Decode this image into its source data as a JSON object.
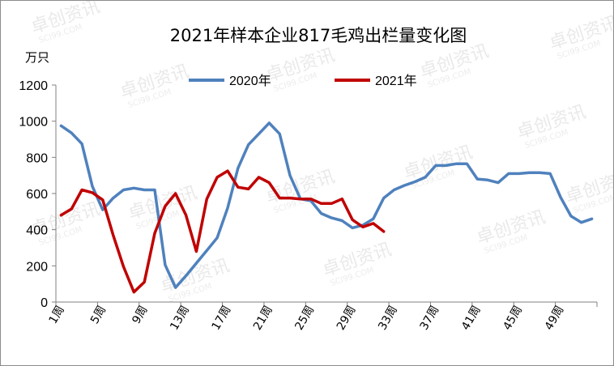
{
  "chart_data": {
    "type": "line",
    "title": "2021年样本企业817毛鸡出栏量变化图",
    "ylabel": "万只",
    "xlabel": "",
    "ylim": [
      0,
      1200
    ],
    "yticks": [
      0,
      200,
      400,
      600,
      800,
      1000,
      1200
    ],
    "grid": false,
    "legend_position": "top-center",
    "x_tick_labels": [
      "1周",
      "5周",
      "9周",
      "13周",
      "17周",
      "21周",
      "25周",
      "29周",
      "33周",
      "37周",
      "41周",
      "45周",
      "49周"
    ],
    "x_tick_weeks": [
      1,
      5,
      9,
      13,
      17,
      21,
      25,
      29,
      33,
      37,
      41,
      45,
      49
    ],
    "x_count": 52,
    "series": [
      {
        "name": "2020年",
        "color": "#4f81bd",
        "x": [
          1,
          2,
          3,
          4,
          5,
          6,
          7,
          8,
          9,
          10,
          11,
          12,
          13,
          14,
          15,
          16,
          17,
          18,
          19,
          20,
          21,
          22,
          23,
          24,
          25,
          26,
          27,
          28,
          29,
          30,
          31,
          32,
          33,
          34,
          35,
          36,
          37,
          38,
          39,
          40,
          41,
          42,
          43,
          44,
          45,
          46,
          47,
          48,
          49,
          50,
          51,
          52
        ],
        "values": [
          975,
          935,
          875,
          640,
          510,
          575,
          620,
          630,
          620,
          620,
          205,
          80,
          145,
          215,
          285,
          355,
          520,
          740,
          870,
          930,
          990,
          930,
          700,
          570,
          560,
          490,
          465,
          450,
          410,
          425,
          460,
          575,
          620,
          645,
          665,
          690,
          755,
          755,
          765,
          765,
          680,
          675,
          660,
          710,
          710,
          715,
          715,
          710,
          580,
          475,
          440,
          460
        ]
      },
      {
        "name": "2021年",
        "color": "#c00000",
        "x": [
          1,
          2,
          3,
          4,
          5,
          6,
          7,
          8,
          9,
          10,
          11,
          12,
          13,
          14,
          15,
          16,
          17,
          18,
          19,
          20,
          21,
          22,
          23,
          24,
          25,
          26,
          27,
          28,
          29,
          30,
          31,
          32
        ],
        "values": [
          480,
          515,
          620,
          605,
          565,
          370,
          195,
          55,
          110,
          380,
          530,
          600,
          480,
          280,
          570,
          690,
          725,
          635,
          625,
          690,
          660,
          575,
          575,
          570,
          570,
          545,
          545,
          570,
          455,
          415,
          435,
          390
        ]
      }
    ]
  },
  "watermark": {
    "brand": "卓创资讯",
    "site": "SCI99.COM"
  }
}
